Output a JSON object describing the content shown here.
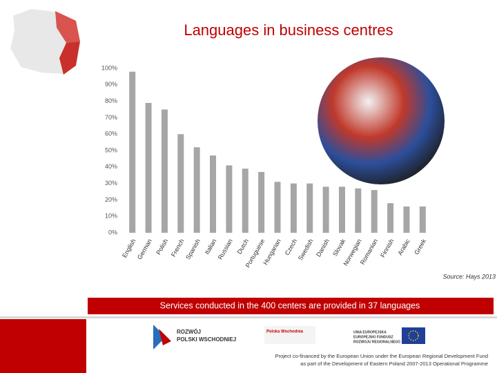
{
  "chart_data": {
    "type": "bar",
    "title": "Languages in business centres",
    "categories": [
      "English",
      "German",
      "Polish",
      "French",
      "Spanish",
      "Italian",
      "Russian",
      "Dutch",
      "Portuguese",
      "Hungarian",
      "Czech",
      "Swedish",
      "Danish",
      "Slovak",
      "Norwegian",
      "Romanian",
      "Finnish",
      "Arabic",
      "Greek"
    ],
    "values": [
      98,
      79,
      75,
      60,
      52,
      47,
      41,
      39,
      37,
      31,
      30,
      30,
      28,
      28,
      27,
      26,
      18,
      16,
      16
    ],
    "color": "#a6a6a6",
    "ylim": [
      0,
      100
    ],
    "yticks": [
      {
        "value": 0,
        "label": "0%"
      },
      {
        "value": 10,
        "label": "10%"
      },
      {
        "value": 20,
        "label": "20%"
      },
      {
        "value": 30,
        "label": "30%"
      },
      {
        "value": 40,
        "label": "40%"
      },
      {
        "value": 50,
        "label": "50%"
      },
      {
        "value": 60,
        "label": "60%"
      },
      {
        "value": 70,
        "label": "70%"
      },
      {
        "value": 80,
        "label": "80%"
      },
      {
        "value": 90,
        "label": "90%"
      },
      {
        "value": 100,
        "label": "100%"
      }
    ],
    "grid": false,
    "source": "Source: Hays 2013"
  },
  "slide": {
    "banner": "Services conducted in the 400 centers are provided in 37 languages",
    "footer": [
      "Project co-financed by the European Union under the  European Regional Development Fund",
      "as part of the Development of Eastern Poland 2007-2013 Operational Programme"
    ],
    "logos": [
      "ROZWÓJ",
      "POLSKI WSCHODNIEJ",
      "Polska Wschodnia",
      "UNIA EUROPEJSKA",
      "EUROPEJSKI FUNDUSZ",
      "ROZWOJU REGIONALNEGO"
    ]
  }
}
